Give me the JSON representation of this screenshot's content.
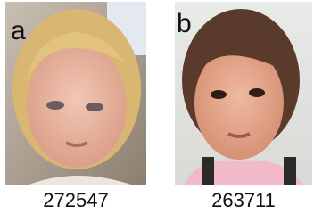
{
  "panels": [
    {
      "label": "a",
      "caption": "272547"
    },
    {
      "label": "b",
      "caption": "263711"
    }
  ]
}
